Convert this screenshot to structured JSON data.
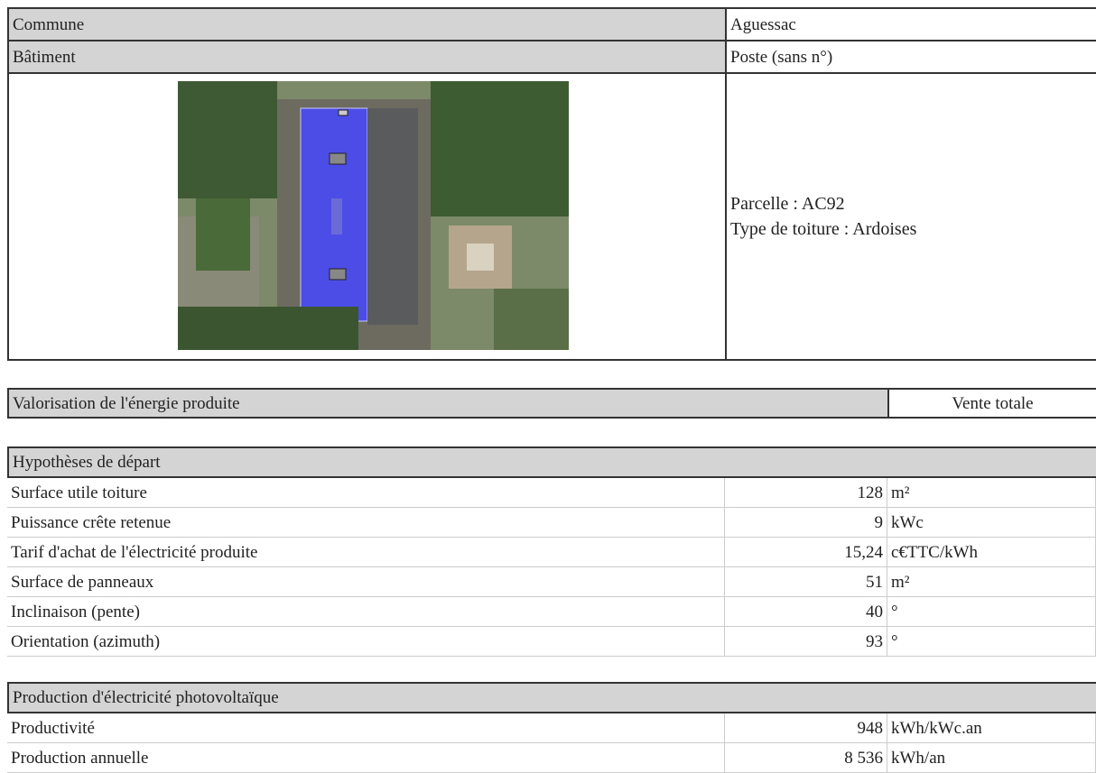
{
  "building": {
    "commune_label": "Commune",
    "commune": "Aguessac",
    "batiment_label": "Bâtiment",
    "batiment": "Poste (sans n°)",
    "parcelle_label": "Parcelle :",
    "parcelle": "AC92",
    "toiture_label": "Type de toiture :",
    "toiture": "Ardoises"
  },
  "valorisation": {
    "label": "Valorisation de l'énergie produite",
    "value": "Vente totale"
  },
  "sections": [
    {
      "title": "Hypothèses de départ",
      "rows": [
        [
          "Surface utile toiture",
          "128",
          "m²"
        ],
        [
          "Puissance crête retenue",
          "9",
          "kWc"
        ],
        [
          "Tarif d'achat de l'électricité produite",
          "15,24",
          "c€TTC/kWh"
        ],
        [
          "Surface de panneaux",
          "51",
          "m²"
        ],
        [
          "Inclinaison (pente)",
          "40",
          "°"
        ],
        [
          "Orientation (azimuth)",
          "93",
          "°"
        ]
      ]
    },
    {
      "title": "Production d'électricité photovoltaïque",
      "rows": [
        [
          "Productivité",
          "948",
          "kWh/kWc.an"
        ],
        [
          "Production annuelle",
          "8 536",
          "kWh/an"
        ]
      ]
    }
  ]
}
